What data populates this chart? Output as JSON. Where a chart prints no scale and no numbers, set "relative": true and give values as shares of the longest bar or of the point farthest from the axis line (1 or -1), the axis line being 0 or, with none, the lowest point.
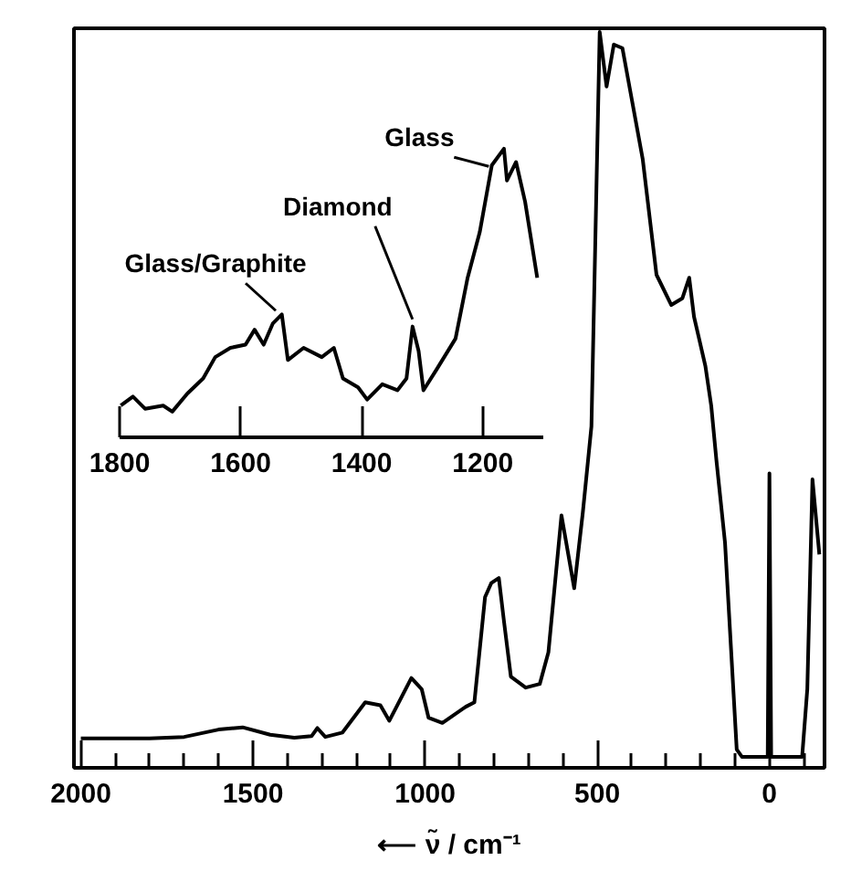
{
  "chart_data": [
    {
      "type": "line",
      "relative": true,
      "xlabel": "⟵ ν̃ / cm⁻¹",
      "xlim": [
        2020,
        -160
      ],
      "xticks": [
        2000,
        {
          "value": 1900,
          "label": null
        },
        {
          "value": 1800,
          "label": null
        },
        {
          "value": 1700,
          "label": null
        },
        {
          "value": 1600,
          "label": null
        },
        1500,
        {
          "value": 1400,
          "label": null
        },
        {
          "value": 1300,
          "label": null
        },
        {
          "value": 1200,
          "label": null
        },
        {
          "value": 1100,
          "label": null
        },
        1000,
        {
          "value": 900,
          "label": null
        },
        {
          "value": 800,
          "label": null
        },
        {
          "value": 700,
          "label": null
        },
        {
          "value": 600,
          "label": null
        },
        500,
        {
          "value": 400,
          "label": null
        },
        {
          "value": 300,
          "label": null
        },
        {
          "value": 200,
          "label": null
        },
        {
          "value": 100,
          "label": null
        },
        0,
        {
          "value": -100,
          "label": null
        }
      ],
      "series": [
        {
          "color": "#000000",
          "x": [
            2000,
            1800,
            1700,
            1600,
            1530,
            1450,
            1380,
            1330,
            1313,
            1290,
            1240,
            1174,
            1130,
            1104,
            1040,
            1010,
            990,
            950,
            882,
            857,
            826,
            808,
            786,
            771,
            751,
            708,
            667,
            642,
            604,
            567,
            542,
            517,
            493,
            473,
            452,
            427,
            368,
            328,
            285,
            253,
            233,
            219,
            186,
            169,
            154,
            129,
            95,
            80,
            20,
            5,
            0,
            -5,
            -10,
            -95,
            -110,
            -125,
            -145
          ],
          "values": [
            0.04,
            0.04,
            0.042,
            0.052,
            0.055,
            0.045,
            0.041,
            0.043,
            0.054,
            0.042,
            0.048,
            0.089,
            0.085,
            0.064,
            0.122,
            0.107,
            0.068,
            0.061,
            0.083,
            0.089,
            0.232,
            0.251,
            0.258,
            0.199,
            0.124,
            0.109,
            0.114,
            0.157,
            0.343,
            0.244,
            0.347,
            0.464,
            1.0,
            0.926,
            0.983,
            0.978,
            0.827,
            0.67,
            0.629,
            0.638,
            0.666,
            0.613,
            0.546,
            0.492,
            0.418,
            0.306,
            0.025,
            0.015,
            0.015,
            0.015,
            0.4,
            0.015,
            0.015,
            0.015,
            0.107,
            0.392,
            0.29
          ]
        }
      ]
    },
    {
      "type": "line",
      "relative": true,
      "xlim": [
        1800,
        1100
      ],
      "xticks": [
        1800,
        1600,
        1400,
        1200
      ],
      "series": [
        {
          "color": "#000000",
          "x": [
            1798,
            1778,
            1758,
            1728,
            1713,
            1688,
            1662,
            1642,
            1617,
            1592,
            1577,
            1562,
            1547,
            1532,
            1522,
            1496,
            1466,
            1446,
            1431,
            1406,
            1391,
            1366,
            1341,
            1326,
            1316,
            1306,
            1298,
            1276,
            1245,
            1225,
            1205,
            1185,
            1165,
            1160,
            1145,
            1130,
            1110
          ],
          "values": [
            0.11,
            0.141,
            0.099,
            0.11,
            0.089,
            0.152,
            0.204,
            0.278,
            0.31,
            0.321,
            0.373,
            0.321,
            0.394,
            0.426,
            0.268,
            0.31,
            0.278,
            0.31,
            0.204,
            0.173,
            0.131,
            0.184,
            0.163,
            0.204,
            0.384,
            0.299,
            0.163,
            0.236,
            0.342,
            0.553,
            0.711,
            0.943,
            1.0,
            0.89,
            0.954,
            0.816,
            0.553
          ]
        }
      ],
      "annotations": [
        {
          "text": "Glass/Graphite",
          "x": 1542,
          "y": 0.42
        },
        {
          "text": "Diamond",
          "x": 1316,
          "y": 0.39
        },
        {
          "text": "Glass",
          "x": 1190,
          "y": 0.92
        }
      ]
    }
  ]
}
